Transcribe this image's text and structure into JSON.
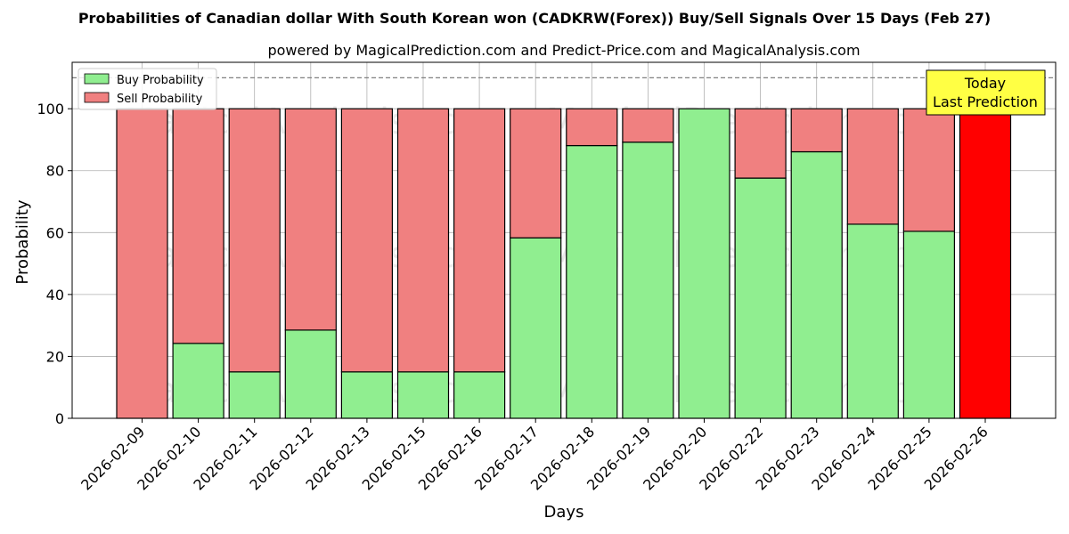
{
  "chart_data": {
    "type": "bar",
    "stacked": true,
    "title": "Probabilities of Canadian dollar With South Korean won (CADKRW(Forex)) Buy/Sell Signals Over 15 Days (Feb 27)",
    "subtitle": "powered by MagicalPrediction.com and Predict-Price.com and MagicalAnalysis.com",
    "xlabel": "Days",
    "ylabel": "Probability",
    "ylim": [
      0,
      115
    ],
    "yticks": [
      0,
      20,
      40,
      60,
      80,
      100
    ],
    "grid": true,
    "reference_line": 110,
    "legend_position": "top-left",
    "categories": [
      "2026-02-09",
      "2026-02-10",
      "2026-02-11",
      "2026-02-12",
      "2026-02-13",
      "2026-02-15",
      "2026-02-16",
      "2026-02-17",
      "2026-02-18",
      "2026-02-19",
      "2026-02-20",
      "2026-02-22",
      "2026-02-23",
      "2026-02-24",
      "2026-02-25",
      "2026-02-26"
    ],
    "series": [
      {
        "name": "Buy Probability",
        "color": "#90ee90",
        "values": [
          0,
          24.2,
          15,
          28.5,
          15,
          15,
          15,
          58.3,
          88.1,
          89.2,
          100,
          77.6,
          86.1,
          62.7,
          60.4,
          0
        ]
      },
      {
        "name": "Sell Probability",
        "color": "#f08080",
        "values": [
          100,
          75.8,
          85,
          71.5,
          85,
          85,
          85,
          41.7,
          11.9,
          10.8,
          0,
          22.4,
          13.9,
          37.3,
          39.6,
          100
        ]
      }
    ],
    "highlight": {
      "index": 15,
      "color": "#ff0000"
    },
    "annotation": {
      "line1": "Today",
      "line2": "Last Prediction",
      "background": "#ffff44"
    },
    "watermarks": [
      "MagicalAnalysis.com",
      "MagicalPrediction.com"
    ]
  }
}
